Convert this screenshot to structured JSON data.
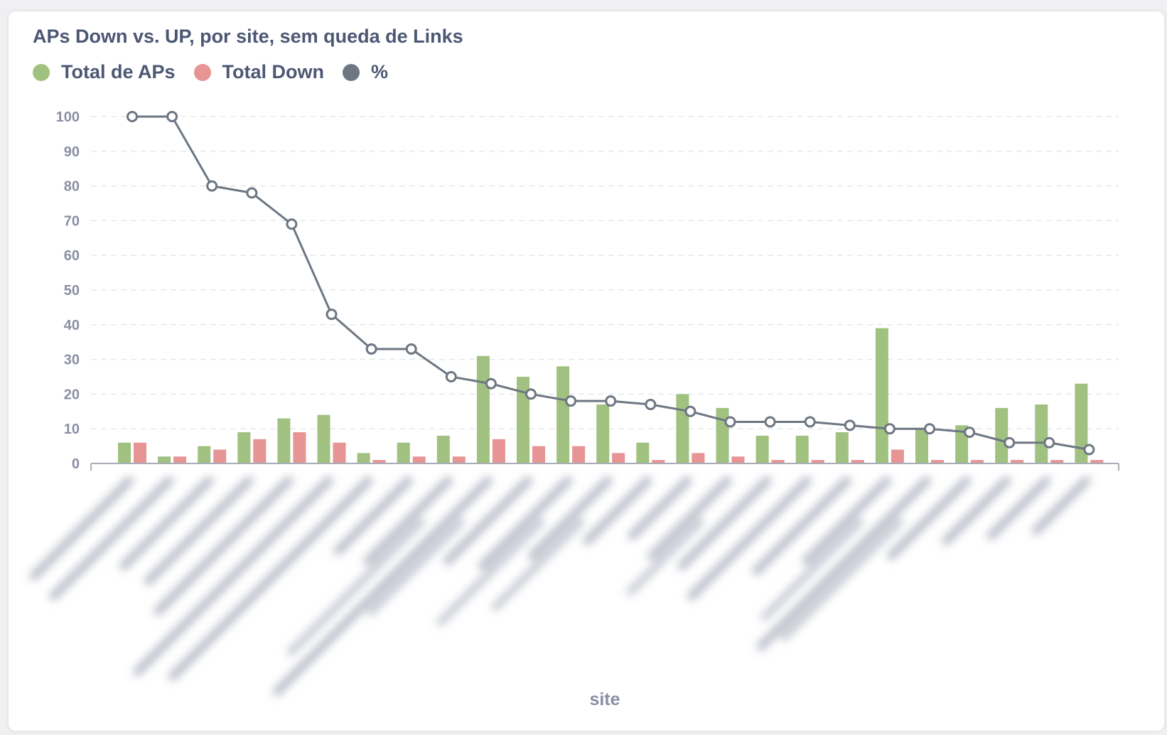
{
  "title": "APs Down vs. UP, por site, sem queda de Links",
  "legend": [
    {
      "label": "Total de APs",
      "color": "#a1c180"
    },
    {
      "label": "Total Down",
      "color": "#e79495"
    },
    {
      "label": "%",
      "color": "#6d7782"
    }
  ],
  "chart_data": {
    "type": "bar",
    "title": "APs Down vs. UP, por site, sem queda de Links",
    "xlabel": "site",
    "ylabel": "",
    "ylim": [
      0,
      100
    ],
    "yticks": [
      0,
      10,
      20,
      30,
      40,
      50,
      60,
      70,
      80,
      90,
      100
    ],
    "grid": true,
    "legend_position": "top-left",
    "category_labels_visible": false,
    "categories_count": 25,
    "series": [
      {
        "name": "Total de APs",
        "type": "bar",
        "color": "#a1c180",
        "values": [
          6,
          2,
          5,
          9,
          13,
          14,
          3,
          6,
          8,
          31,
          25,
          28,
          17,
          6,
          20,
          16,
          8,
          8,
          9,
          39,
          10,
          11,
          16,
          17,
          23
        ]
      },
      {
        "name": "Total Down",
        "type": "bar",
        "color": "#e79495",
        "values": [
          6,
          2,
          4,
          7,
          9,
          6,
          1,
          2,
          2,
          7,
          5,
          5,
          3,
          1,
          3,
          2,
          1,
          1,
          1,
          4,
          1,
          1,
          1,
          1,
          1
        ]
      },
      {
        "name": "%",
        "type": "line",
        "color": "#6d7782",
        "values": [
          100,
          100,
          80,
          78,
          69,
          43,
          33,
          33,
          25,
          23,
          20,
          18,
          18,
          17,
          15,
          12,
          12,
          12,
          11,
          10,
          10,
          9,
          6,
          6,
          4
        ]
      }
    ]
  }
}
